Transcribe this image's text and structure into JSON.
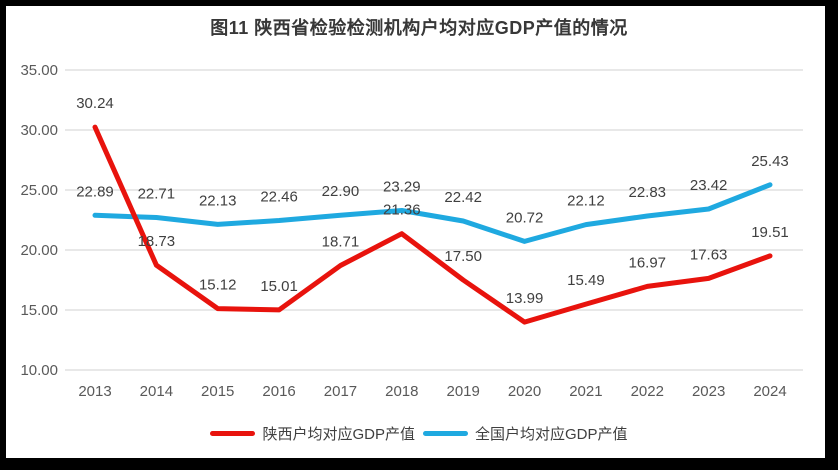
{
  "title": "图11  陕西省检验检测机构户均对应GDP产值的情况",
  "colors": {
    "shaanxi": "#e8130d",
    "national": "#1fa9e0",
    "grid": "#d9d9d9",
    "axis_text": "#595959",
    "data_label_text": "#404040",
    "frame": "#000000",
    "surface": "#ffffff"
  },
  "chart_data": {
    "type": "line",
    "title": "图11  陕西省检验检测机构户均对应GDP产值的情况",
    "categories": [
      "2013",
      "2014",
      "2015",
      "2016",
      "2017",
      "2018",
      "2019",
      "2020",
      "2021",
      "2022",
      "2023",
      "2024"
    ],
    "series": [
      {
        "name": "陕西户均对应GDP产值",
        "color_key": "shaanxi",
        "values": [
          30.24,
          18.73,
          15.12,
          15.01,
          18.71,
          21.36,
          17.5,
          13.99,
          15.49,
          16.97,
          17.63,
          19.51
        ]
      },
      {
        "name": "全国户均对应GDP产值",
        "color_key": "national",
        "values": [
          22.89,
          22.71,
          22.13,
          22.46,
          22.9,
          23.29,
          22.42,
          20.72,
          22.12,
          22.83,
          23.42,
          25.43
        ]
      }
    ],
    "xlabel": "",
    "ylabel": "",
    "ylim": [
      10,
      35
    ],
    "ytick_step": 5,
    "ytick_labels": [
      "10.00",
      "15.00",
      "20.00",
      "25.00",
      "30.00",
      "35.00"
    ],
    "grid": true,
    "value_labels": true,
    "legend_position": "bottom"
  }
}
